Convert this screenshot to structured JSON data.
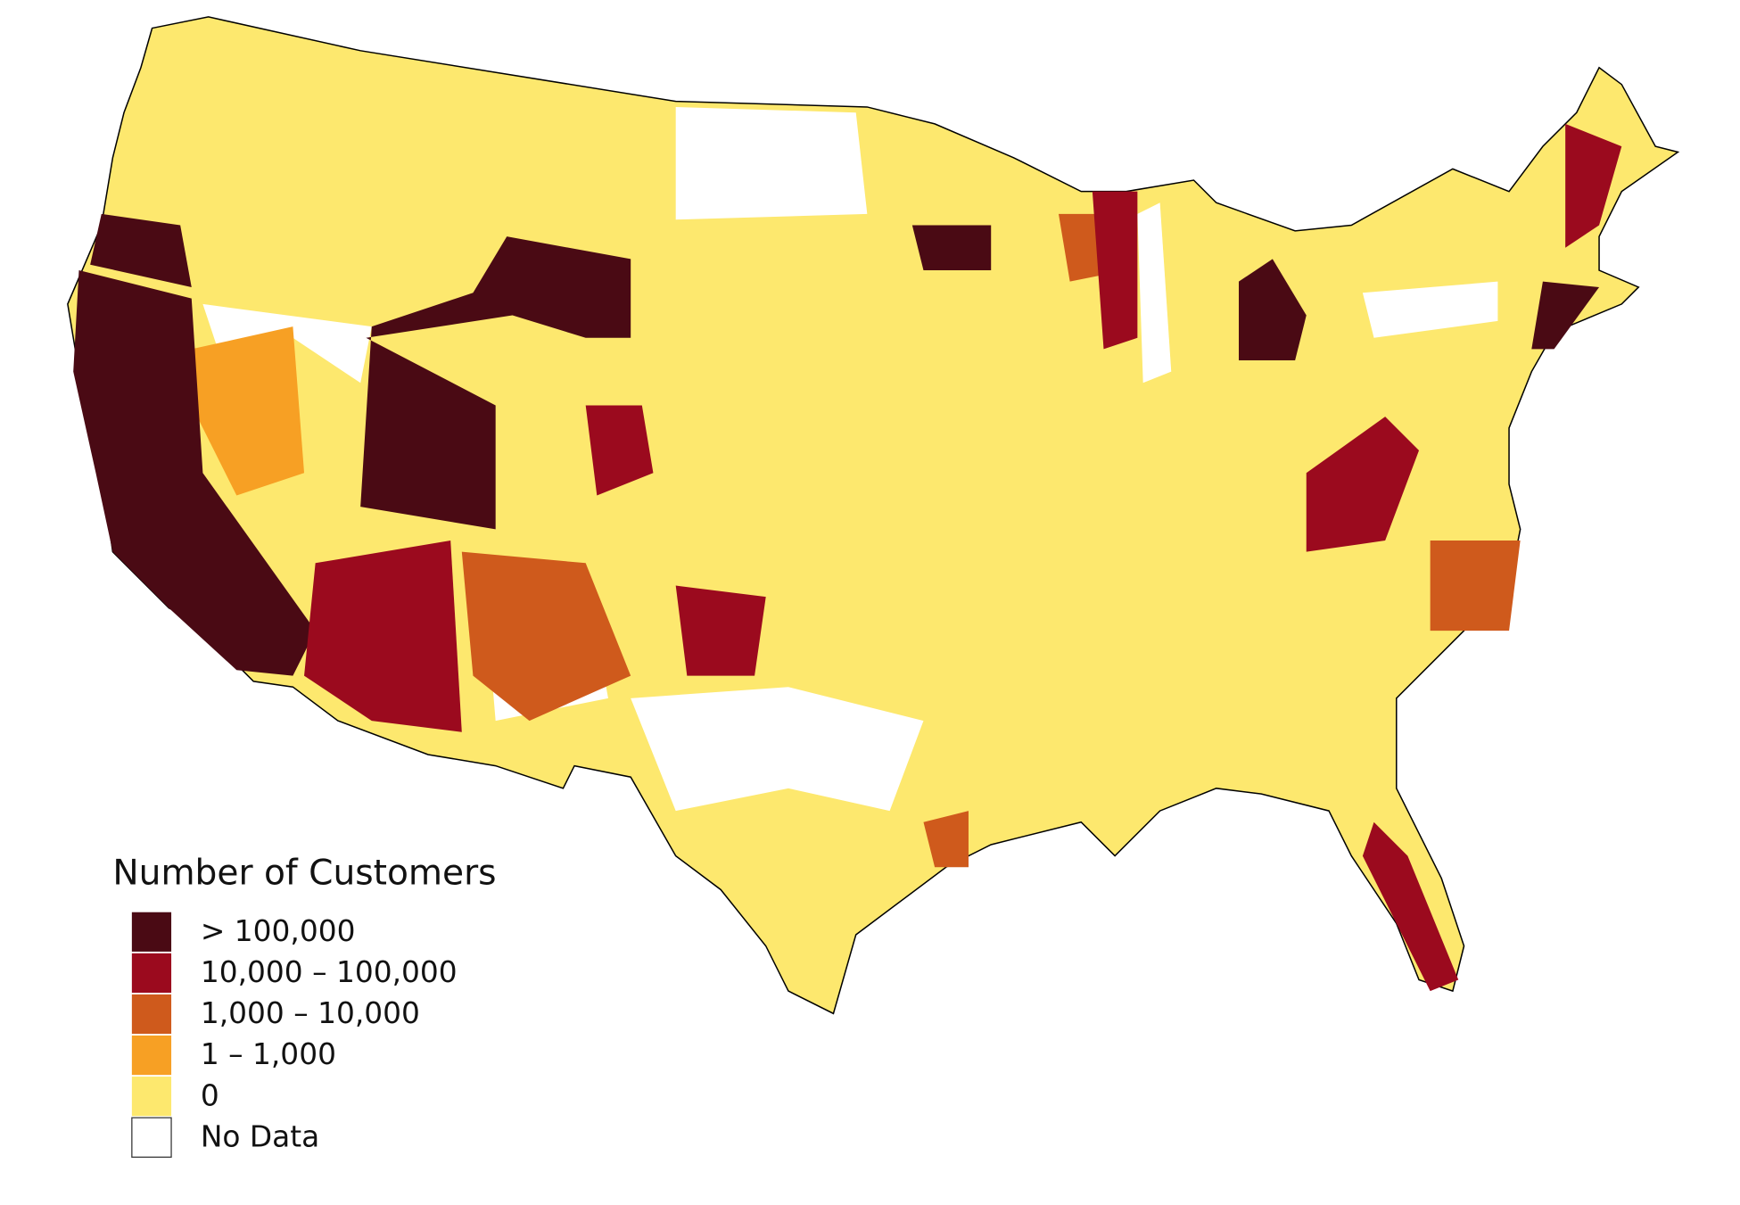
{
  "legend": {
    "title": "Number of Customers",
    "items": [
      {
        "label": "> 100,000",
        "color": "#4a0a14"
      },
      {
        "label": "10,000 – 100,000",
        "color": "#9b0a1e"
      },
      {
        "label": "1,000 – 10,000",
        "color": "#cf5a1c"
      },
      {
        "label": "1 – 1,000",
        "color": "#f7a024"
      },
      {
        "label": "0",
        "color": "#fde86e"
      },
      {
        "label": "No Data",
        "color": "#ffffff"
      }
    ]
  }
}
